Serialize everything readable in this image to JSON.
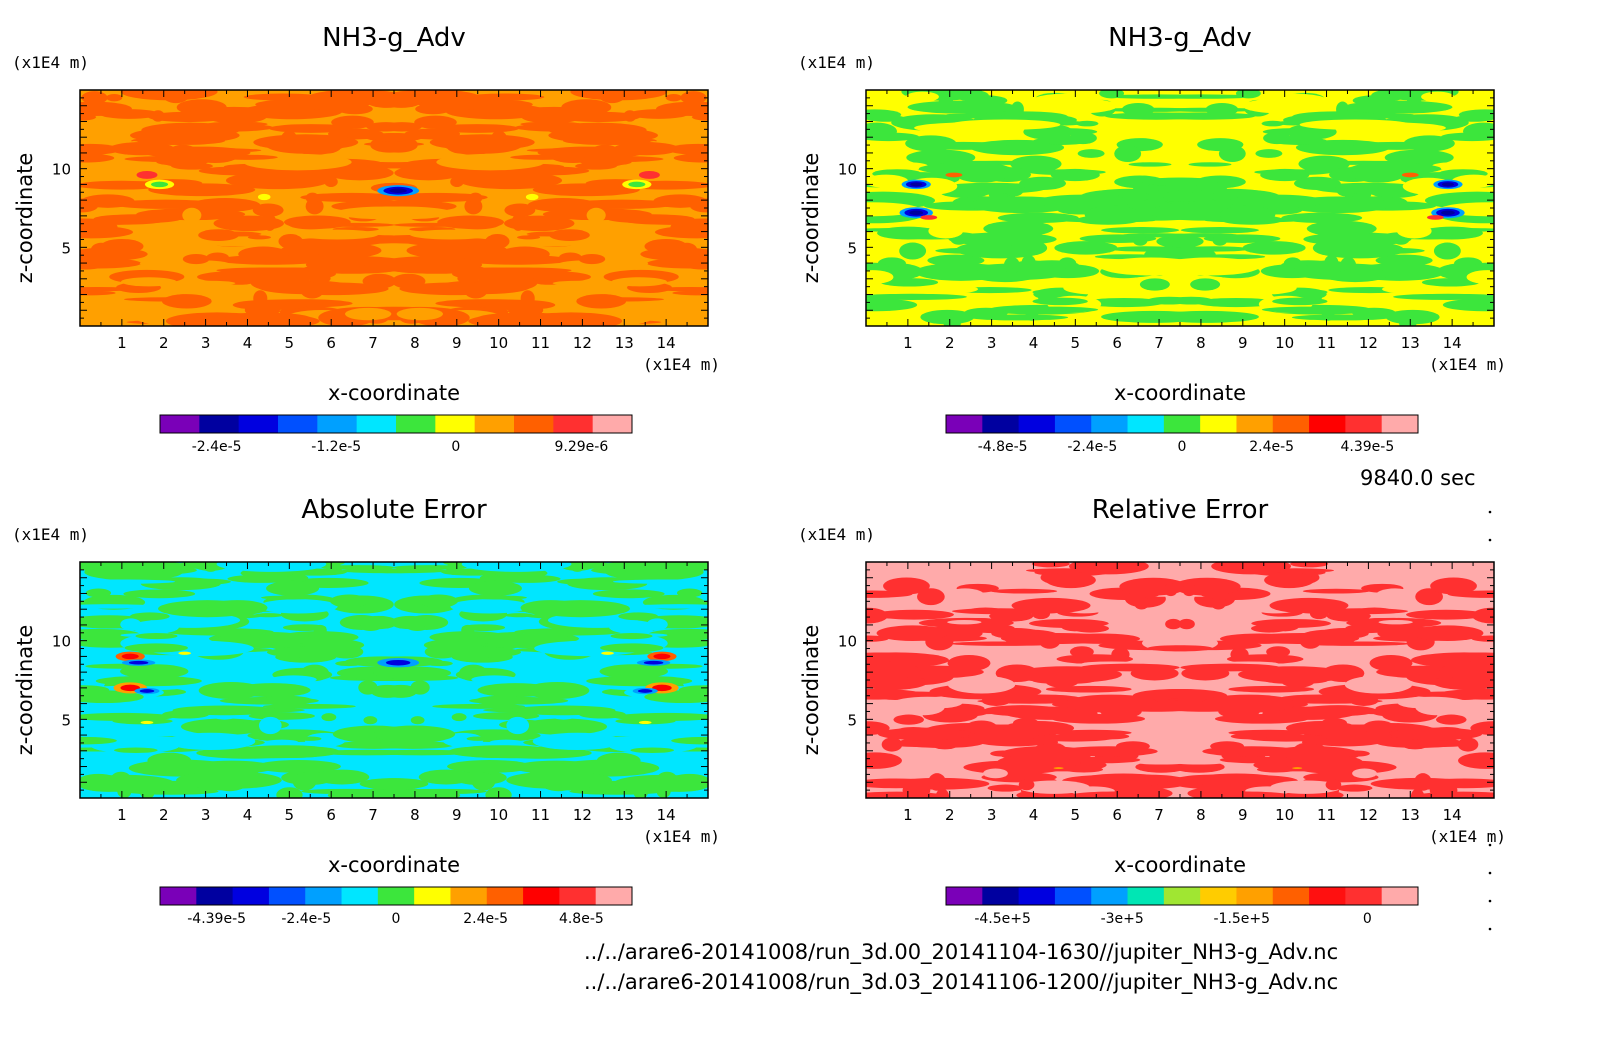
{
  "time_label": "9840.0 sec",
  "footer": [
    "../../arare6-20141008/run_3d.00_20141104-1630//jupiter_NH3-g_Adv.nc",
    "../../arare6-20141008/run_3d.03_20141106-1200//jupiter_NH3-g_Adv.nc"
  ],
  "chart_data": [
    {
      "type": "heatmap",
      "title": "NH3-g_Adv",
      "xlabel": "x-coordinate",
      "ylabel": "z-coordinate",
      "x_unit": "(x1E4 m)",
      "y_unit": "(x1E4 m)",
      "xlim": [
        0,
        15
      ],
      "ylim": [
        0,
        15
      ],
      "xticks": [
        "1",
        "2",
        "3",
        "4",
        "5",
        "6",
        "7",
        "8",
        "9",
        "10",
        "11",
        "12",
        "13",
        "14"
      ],
      "yticks": [
        "5",
        "10"
      ],
      "colorbar": {
        "colors": [
          "#7a00b8",
          "#0000a0",
          "#0000e0",
          "#0050ff",
          "#00a0ff",
          "#00e6ff",
          "#3ce63c",
          "#ffff00",
          "#ffa000",
          "#ff6000",
          "#ff3030",
          "#ffaaaa"
        ],
        "labels": [
          "-2.4e-5",
          "-1.2e-5",
          "0",
          "9.29e-6"
        ]
      },
      "dominant_colors": [
        "#ffa000",
        "#ff6000"
      ],
      "features": [
        {
          "x": 7.6,
          "z": 8.6,
          "rx": 0.5,
          "rz": 0.35,
          "colors": [
            "#00a0ff",
            "#0000e0",
            "#0000a0"
          ]
        },
        {
          "x": 1.9,
          "z": 9.0,
          "rx": 0.35,
          "rz": 0.3,
          "colors": [
            "#ffff00",
            "#3ce63c"
          ]
        },
        {
          "x": 1.6,
          "z": 9.6,
          "rx": 0.25,
          "rz": 0.25,
          "colors": [
            "#ff3030"
          ]
        },
        {
          "x": 13.3,
          "z": 9.0,
          "rx": 0.35,
          "rz": 0.3,
          "colors": [
            "#ffff00",
            "#3ce63c"
          ]
        },
        {
          "x": 13.6,
          "z": 9.6,
          "rx": 0.25,
          "rz": 0.25,
          "colors": [
            "#ff3030"
          ]
        },
        {
          "x": 4.4,
          "z": 8.2,
          "rx": 0.15,
          "rz": 0.2,
          "colors": [
            "#ffff00"
          ]
        },
        {
          "x": 10.8,
          "z": 8.2,
          "rx": 0.15,
          "rz": 0.2,
          "colors": [
            "#ffff00"
          ]
        }
      ]
    },
    {
      "type": "heatmap",
      "title": "NH3-g_Adv",
      "xlabel": "x-coordinate",
      "ylabel": "z-coordinate",
      "x_unit": "(x1E4 m)",
      "y_unit": "(x1E4 m)",
      "xlim": [
        0,
        15
      ],
      "ylim": [
        0,
        15
      ],
      "xticks": [
        "1",
        "2",
        "3",
        "4",
        "5",
        "6",
        "7",
        "8",
        "9",
        "10",
        "11",
        "12",
        "13",
        "14"
      ],
      "yticks": [
        "5",
        "10"
      ],
      "colorbar": {
        "colors": [
          "#7a00b8",
          "#0000a0",
          "#0000e0",
          "#0050ff",
          "#00a0ff",
          "#00e6ff",
          "#3ce63c",
          "#ffff00",
          "#ffa000",
          "#ff6000",
          "#ff0000",
          "#ff3030",
          "#ffaaaa"
        ],
        "labels": [
          "-4.8e-5",
          "-2.4e-5",
          "0",
          "2.4e-5",
          "4.39e-5"
        ]
      },
      "dominant_colors": [
        "#ffff00",
        "#3ce63c"
      ],
      "features": [
        {
          "x": 1.2,
          "z": 9.0,
          "rx": 0.35,
          "rz": 0.3,
          "colors": [
            "#00a0ff",
            "#0000e0",
            "#0000a0"
          ]
        },
        {
          "x": 1.2,
          "z": 7.2,
          "rx": 0.4,
          "rz": 0.35,
          "colors": [
            "#00a0ff",
            "#0000e0",
            "#0000a0"
          ]
        },
        {
          "x": 1.5,
          "z": 6.9,
          "rx": 0.2,
          "rz": 0.15,
          "colors": [
            "#ff3030"
          ]
        },
        {
          "x": 13.9,
          "z": 9.0,
          "rx": 0.35,
          "rz": 0.3,
          "colors": [
            "#00a0ff",
            "#0000e0",
            "#0000a0"
          ]
        },
        {
          "x": 13.9,
          "z": 7.2,
          "rx": 0.4,
          "rz": 0.35,
          "colors": [
            "#00a0ff",
            "#0000e0",
            "#0000a0"
          ]
        },
        {
          "x": 13.6,
          "z": 6.9,
          "rx": 0.2,
          "rz": 0.15,
          "colors": [
            "#ff3030"
          ]
        },
        {
          "x": 2.1,
          "z": 9.6,
          "rx": 0.2,
          "rz": 0.15,
          "colors": [
            "#ff6000"
          ]
        },
        {
          "x": 13.0,
          "z": 9.6,
          "rx": 0.2,
          "rz": 0.15,
          "colors": [
            "#ff6000"
          ]
        }
      ]
    },
    {
      "type": "heatmap",
      "title": "Absolute Error",
      "xlabel": "x-coordinate",
      "ylabel": "z-coordinate",
      "x_unit": "(x1E4 m)",
      "y_unit": "(x1E4 m)",
      "xlim": [
        0,
        15
      ],
      "ylim": [
        0,
        15
      ],
      "xticks": [
        "1",
        "2",
        "3",
        "4",
        "5",
        "6",
        "7",
        "8",
        "9",
        "10",
        "11",
        "12",
        "13",
        "14"
      ],
      "yticks": [
        "5",
        "10"
      ],
      "colorbar": {
        "colors": [
          "#7a00b8",
          "#0000a0",
          "#0000e0",
          "#0050ff",
          "#00a0ff",
          "#00e6ff",
          "#3ce63c",
          "#ffff00",
          "#ffa000",
          "#ff6000",
          "#ff0000",
          "#ff3030",
          "#ffaaaa"
        ],
        "labels": [
          "-4.39e-5",
          "-2.4e-5",
          "0",
          "2.4e-5",
          "4.8e-5"
        ]
      },
      "dominant_colors": [
        "#00e6ff",
        "#3ce63c"
      ],
      "features": [
        {
          "x": 1.2,
          "z": 9.0,
          "rx": 0.35,
          "rz": 0.3,
          "colors": [
            "#ff6000",
            "#ff0000"
          ]
        },
        {
          "x": 1.4,
          "z": 8.6,
          "rx": 0.4,
          "rz": 0.2,
          "colors": [
            "#00a0ff",
            "#0000e0"
          ]
        },
        {
          "x": 1.2,
          "z": 7.0,
          "rx": 0.4,
          "rz": 0.35,
          "colors": [
            "#ffa000",
            "#ff0000"
          ]
        },
        {
          "x": 1.6,
          "z": 6.8,
          "rx": 0.3,
          "rz": 0.2,
          "colors": [
            "#00a0ff",
            "#0000e0"
          ]
        },
        {
          "x": 13.9,
          "z": 9.0,
          "rx": 0.35,
          "rz": 0.3,
          "colors": [
            "#ff6000",
            "#ff0000"
          ]
        },
        {
          "x": 13.7,
          "z": 8.6,
          "rx": 0.4,
          "rz": 0.2,
          "colors": [
            "#00a0ff",
            "#0000e0"
          ]
        },
        {
          "x": 13.9,
          "z": 7.0,
          "rx": 0.4,
          "rz": 0.35,
          "colors": [
            "#ffa000",
            "#ff0000"
          ]
        },
        {
          "x": 13.5,
          "z": 6.8,
          "rx": 0.3,
          "rz": 0.2,
          "colors": [
            "#00a0ff",
            "#0000e0"
          ]
        },
        {
          "x": 7.6,
          "z": 8.6,
          "rx": 0.5,
          "rz": 0.3,
          "colors": [
            "#00a0ff",
            "#0000e0"
          ]
        },
        {
          "x": 2.5,
          "z": 9.2,
          "rx": 0.15,
          "rz": 0.1,
          "colors": [
            "#ffff00"
          ]
        },
        {
          "x": 12.6,
          "z": 9.2,
          "rx": 0.15,
          "rz": 0.1,
          "colors": [
            "#ffff00"
          ]
        },
        {
          "x": 1.6,
          "z": 4.8,
          "rx": 0.15,
          "rz": 0.1,
          "colors": [
            "#ffff00"
          ]
        },
        {
          "x": 13.5,
          "z": 4.8,
          "rx": 0.15,
          "rz": 0.1,
          "colors": [
            "#ffff00"
          ]
        }
      ]
    },
    {
      "type": "heatmap",
      "title": "Relative Error",
      "xlabel": "x-coordinate",
      "ylabel": "z-coordinate",
      "x_unit": "(x1E4 m)",
      "y_unit": "(x1E4 m)",
      "xlim": [
        0,
        15
      ],
      "ylim": [
        0,
        15
      ],
      "xticks": [
        "1",
        "2",
        "3",
        "4",
        "5",
        "6",
        "7",
        "8",
        "9",
        "10",
        "11",
        "12",
        "13",
        "14"
      ],
      "yticks": [
        "5",
        "10"
      ],
      "colorbar": {
        "colors": [
          "#7a00b8",
          "#0000a0",
          "#0000e0",
          "#0050ff",
          "#00a0ff",
          "#00e6b4",
          "#a0e632",
          "#ffcc00",
          "#ffa000",
          "#ff6000",
          "#ff1010",
          "#ff3030",
          "#ffaaaa"
        ],
        "labels": [
          "-4.5e+5",
          "-3e+5",
          "-1.5e+5",
          "0"
        ]
      },
      "dominant_colors": [
        "#ffaaaa",
        "#ff3030"
      ],
      "features": [
        {
          "x": 4.6,
          "z": 1.9,
          "rx": 0.12,
          "rz": 0.06,
          "colors": [
            "#ffa000"
          ]
        },
        {
          "x": 10.3,
          "z": 1.9,
          "rx": 0.12,
          "rz": 0.06,
          "colors": [
            "#ffa000"
          ]
        }
      ]
    }
  ]
}
